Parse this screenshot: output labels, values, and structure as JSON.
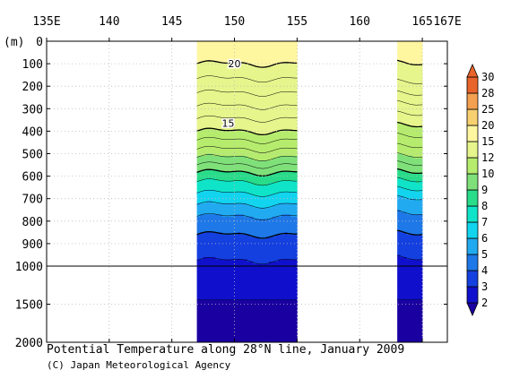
{
  "chart_data": {
    "type": "heatmap",
    "title": "Potential Temperature along 28°N line, January 2009",
    "credit": "(C) Japan Meteorological Agency",
    "depth_unit_label": "(m)",
    "x_axis": {
      "ticks": [
        135,
        140,
        145,
        150,
        155,
        160,
        165
      ],
      "tick_labels": [
        "135E",
        "140",
        "145",
        "150",
        "155",
        "160",
        "165"
      ],
      "end_label": "167E",
      "range": [
        135,
        167
      ]
    },
    "y_axis": {
      "upper_ticks": [
        0,
        100,
        200,
        300,
        400,
        500,
        600,
        700,
        800,
        900,
        1000
      ],
      "upper_tick_labels": [
        "0",
        "100",
        "200",
        "300",
        "400",
        "500",
        "600",
        "700",
        "800",
        "900",
        "1000"
      ],
      "lower_ticks": [
        1000,
        1500,
        2000
      ],
      "lower_tick_labels": [
        "1000",
        "1500",
        "2000"
      ],
      "range": [
        0,
        2000
      ]
    },
    "grid": true,
    "data_sections_lon": [
      [
        147,
        155
      ],
      [
        163,
        165
      ]
    ],
    "levels": [
      2,
      3,
      4,
      5,
      6,
      7,
      8,
      9,
      10,
      12,
      15,
      20,
      25,
      28,
      30
    ],
    "level_colors": [
      "#1a00a0",
      "#1010cc",
      "#1540e0",
      "#1e78e8",
      "#22aaf0",
      "#12d4ee",
      "#10e4c8",
      "#28dc8a",
      "#7fe07a",
      "#b6ec6e",
      "#e6f58c",
      "#fff6a0",
      "#f7d070",
      "#f3a050",
      "#e8642a"
    ],
    "colorbar_labels": [
      "2",
      "3",
      "4",
      "5",
      "6",
      "7",
      "8",
      "9",
      "10",
      "12",
      "15",
      "20",
      "25",
      "28",
      "30"
    ],
    "contour_labels": [
      {
        "text": "20",
        "lon": 150,
        "depth": 100
      },
      {
        "text": "15",
        "lon": 149.5,
        "depth": 365
      }
    ],
    "profile_depths": [
      0,
      50,
      100,
      200,
      300,
      400,
      500,
      600,
      700,
      800,
      900,
      1000,
      1500,
      2000
    ],
    "profile_west": [
      20.6,
      20.3,
      20.0,
      18.5,
      16.8,
      15.0,
      12.5,
      9.5,
      7.5,
      5.6,
      4.6,
      3.8,
      2.9,
      2.2
    ],
    "profile_east": [
      20.5,
      20.3,
      20.0,
      18.8,
      16.5,
      14.5,
      12.3,
      9.5,
      7.0,
      5.5,
      4.6,
      3.7,
      2.9,
      2.2
    ]
  }
}
